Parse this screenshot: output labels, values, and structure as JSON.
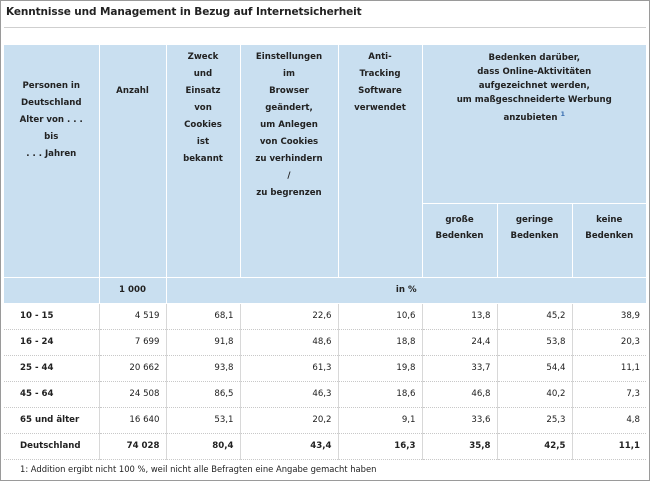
{
  "title": "Kenntnisse und Management in Bezug auf Internetsicherheit",
  "headers": {
    "person": [
      "Personen in",
      "Deutschland",
      "Alter von . . .",
      "bis",
      ". . . Jahren"
    ],
    "anzahl": "Anzahl",
    "zweck": [
      "Zweck",
      "und",
      "Einsatz",
      "von",
      "Cookies",
      "ist",
      "bekannt"
    ],
    "einstellungen": [
      "Einstellungen",
      "im",
      "Browser",
      "geändert,",
      "um Anlegen",
      "von Cookies",
      "zu verhindern",
      "/",
      "zu begrenzen"
    ],
    "antitracking": [
      "Anti-",
      "Tracking",
      "Software",
      "verwendet"
    ],
    "bedenken_group": [
      "Bedenken darüber,",
      "dass Online-Aktivitäten",
      "aufgezeichnet werden,",
      "um maßgeschneiderte Werbung",
      "anzubieten"
    ],
    "bedenken_footnote_mark": "1",
    "sub": {
      "grosse": [
        "große",
        "Bedenken"
      ],
      "geringe": [
        "geringe",
        "Bedenken"
      ],
      "keine": [
        "keine",
        "Bedenken"
      ]
    },
    "unit_count": "1 000",
    "unit_percent": "in %"
  },
  "rows": [
    {
      "label": "10 - 15",
      "values": [
        "4 519",
        "68,1",
        "22,6",
        "10,6",
        "13,8",
        "45,2",
        "38,9"
      ]
    },
    {
      "label": "16 - 24",
      "values": [
        "7 699",
        "91,8",
        "48,6",
        "18,8",
        "24,4",
        "53,8",
        "20,3"
      ]
    },
    {
      "label": "25 - 44",
      "values": [
        "20 662",
        "93,8",
        "61,3",
        "19,8",
        "33,7",
        "54,4",
        "11,1"
      ]
    },
    {
      "label": "45 - 64",
      "values": [
        "24 508",
        "86,5",
        "46,3",
        "18,6",
        "46,8",
        "40,2",
        "7,3"
      ]
    },
    {
      "label": "65 und älter",
      "values": [
        "16 640",
        "53,1",
        "20,2",
        "9,1",
        "33,6",
        "25,3",
        "4,8"
      ]
    },
    {
      "label": "Deutschland",
      "values": [
        "74 028",
        "80,4",
        "43,4",
        "16,3",
        "35,8",
        "42,5",
        "11,1"
      ],
      "total": true
    }
  ],
  "footnote": "1: Addition ergibt nicht 100 %, weil nicht alle Befragten eine Angabe gemacht haben"
}
